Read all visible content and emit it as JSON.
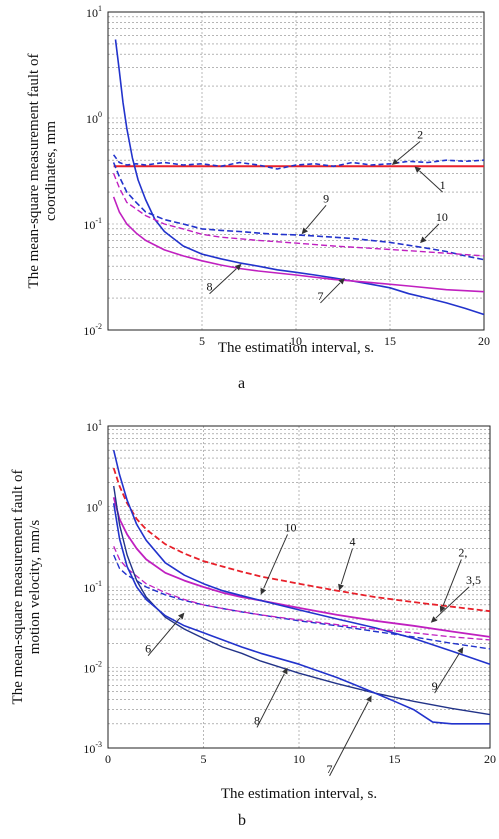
{
  "chart_data": [
    {
      "type": "line",
      "panel_label": "a",
      "xlabel": "The estimation interval, s.",
      "ylabel": "The mean-square measurement fault of coordinates, mm",
      "ylabel_lines": [
        "The mean-square measurement fault of",
        "coordinates, mm"
      ],
      "xlim": [
        0,
        20
      ],
      "ylim": [
        0.01,
        10
      ],
      "yscale": "log",
      "grid": true,
      "xticks": [
        "5",
        "10",
        "15",
        "20"
      ],
      "yticks": [
        {
          "base": "10",
          "exp": "1",
          "v": 10
        },
        {
          "base": "10",
          "exp": "0",
          "v": 1
        },
        {
          "base": "10",
          "exp": "-1",
          "v": 0.1
        },
        {
          "base": "10",
          "exp": "-2",
          "v": 0.01
        }
      ],
      "annotations": [
        {
          "text": "2",
          "x": 16.6,
          "y": 0.6,
          "tx": 15.1,
          "ty": 0.36
        },
        {
          "text": "1",
          "x": 17.8,
          "y": 0.2,
          "tx": 16.3,
          "ty": 0.35
        },
        {
          "text": "9",
          "x": 11.6,
          "y": 0.15,
          "tx": 10.3,
          "ty": 0.08
        },
        {
          "text": "10",
          "x": 17.6,
          "y": 0.1,
          "tx": 16.6,
          "ty": 0.066
        },
        {
          "text": "8",
          "x": 5.4,
          "y": 0.022,
          "tx": 7.1,
          "ty": 0.042
        },
        {
          "text": "7",
          "x": 11.3,
          "y": 0.018,
          "tx": 12.6,
          "ty": 0.031
        }
      ],
      "series": [
        {
          "color": "#e8202a",
          "dash": "",
          "width": 2,
          "x": [
            0.3,
            1,
            2,
            5,
            10,
            15,
            20
          ],
          "y": [
            0.35,
            0.35,
            0.35,
            0.35,
            0.35,
            0.35,
            0.35
          ]
        },
        {
          "color": "#2233cc",
          "dash": "5,3",
          "width": 1.6,
          "x": [
            0.3,
            0.6,
            1,
            1.5,
            2,
            3,
            4,
            5,
            6,
            7,
            8,
            9,
            10,
            11,
            12,
            13,
            14,
            15,
            16,
            17,
            18,
            19,
            20
          ],
          "y": [
            0.45,
            0.38,
            0.36,
            0.37,
            0.36,
            0.38,
            0.36,
            0.37,
            0.35,
            0.38,
            0.36,
            0.33,
            0.36,
            0.37,
            0.35,
            0.38,
            0.36,
            0.37,
            0.39,
            0.38,
            0.4,
            0.39,
            0.4
          ]
        },
        {
          "color": "#2233cc",
          "dash": "",
          "width": 1.6,
          "x": [
            0.4,
            0.6,
            0.8,
            1,
            1.3,
            1.6,
            2,
            2.5,
            3,
            4,
            5,
            6,
            7,
            8,
            9,
            10,
            11,
            12,
            13,
            14,
            15,
            16,
            17,
            18,
            19,
            20
          ],
          "y": [
            5.5,
            2.8,
            1.4,
            0.8,
            0.42,
            0.26,
            0.17,
            0.11,
            0.085,
            0.062,
            0.052,
            0.047,
            0.043,
            0.04,
            0.037,
            0.035,
            0.033,
            0.031,
            0.029,
            0.027,
            0.025,
            0.022,
            0.02,
            0.018,
            0.016,
            0.014
          ]
        },
        {
          "color": "#c020c0",
          "dash": "",
          "width": 1.6,
          "x": [
            0.3,
            0.6,
            1,
            1.5,
            2,
            3,
            4,
            5,
            6,
            7,
            8,
            10,
            12,
            14,
            16,
            18,
            20
          ],
          "y": [
            0.18,
            0.13,
            0.1,
            0.082,
            0.07,
            0.057,
            0.05,
            0.045,
            0.041,
            0.038,
            0.036,
            0.033,
            0.03,
            0.028,
            0.026,
            0.024,
            0.023
          ]
        },
        {
          "color": "#2233cc",
          "dash": "6,3",
          "width": 1.6,
          "x": [
            0.3,
            0.6,
            1,
            1.5,
            2,
            3,
            4,
            5,
            6,
            7,
            8,
            9,
            10,
            11,
            12,
            13,
            14,
            15,
            16,
            17,
            18,
            19,
            20
          ],
          "y": [
            0.38,
            0.28,
            0.2,
            0.16,
            0.13,
            0.11,
            0.1,
            0.09,
            0.087,
            0.085,
            0.082,
            0.08,
            0.079,
            0.077,
            0.075,
            0.073,
            0.07,
            0.067,
            0.063,
            0.059,
            0.055,
            0.05,
            0.046
          ]
        },
        {
          "color": "#c020c0",
          "dash": "6,3",
          "width": 1.4,
          "x": [
            0.3,
            0.6,
            1,
            2,
            3,
            4,
            5,
            6,
            8,
            10,
            12,
            14,
            16,
            18,
            20
          ],
          "y": [
            0.3,
            0.22,
            0.16,
            0.12,
            0.1,
            0.09,
            0.08,
            0.075,
            0.07,
            0.066,
            0.062,
            0.059,
            0.056,
            0.053,
            0.05
          ]
        }
      ]
    },
    {
      "type": "line",
      "panel_label": "b",
      "xlabel": "The estimation interval, s.",
      "ylabel": "The mean-square measurement fault of motion velocity, mm/s",
      "ylabel_lines": [
        "The mean-square measurement fault of",
        "motion velocity, mm/s"
      ],
      "xlim": [
        0,
        20
      ],
      "ylim": [
        0.001,
        10
      ],
      "yscale": "log",
      "grid": true,
      "xticks": [
        "0",
        "5",
        "10",
        "15",
        "20"
      ],
      "yticks": [
        {
          "base": "10",
          "exp": "1",
          "v": 10
        },
        {
          "base": "10",
          "exp": "0",
          "v": 1
        },
        {
          "base": "10",
          "exp": "-1",
          "v": 0.1
        },
        {
          "base": "10",
          "exp": "-2",
          "v": 0.01
        },
        {
          "base": "10",
          "exp": "-3",
          "v": 0.001
        }
      ],
      "annotations": [
        {
          "text": "10",
          "x": 9.4,
          "y": 0.45,
          "tx": 8.0,
          "ty": 0.08
        },
        {
          "text": "4",
          "x": 12.8,
          "y": 0.3,
          "tx": 12.1,
          "ty": 0.09
        },
        {
          "text": "2,",
          "x": 18.5,
          "y": 0.22,
          "tx": 17.4,
          "ty": 0.048
        },
        {
          "text": "3,5",
          "x": 18.9,
          "y": 0.1,
          "tx": 16.9,
          "ty": 0.036
        },
        {
          "text": "6",
          "x": 2.1,
          "y": 0.014,
          "tx": 4.0,
          "ty": 0.048
        },
        {
          "text": "9",
          "x": 17.1,
          "y": 0.0048,
          "tx": 18.6,
          "ty": 0.018
        },
        {
          "text": "8",
          "x": 7.8,
          "y": 0.0018,
          "tx": 9.4,
          "ty": 0.01
        },
        {
          "text": "7",
          "x": 11.6,
          "y": 0.00045,
          "tx": 13.8,
          "ty": 0.0045
        }
      ],
      "series": [
        {
          "color": "#e8202a",
          "dash": "6,3",
          "width": 1.8,
          "x": [
            0.3,
            0.6,
            1,
            1.5,
            2,
            3,
            4,
            5,
            6,
            7,
            8,
            10,
            12,
            14,
            16,
            18,
            20
          ],
          "y": [
            3.0,
            1.8,
            1.1,
            0.7,
            0.52,
            0.34,
            0.26,
            0.21,
            0.18,
            0.155,
            0.135,
            0.11,
            0.09,
            0.075,
            0.065,
            0.057,
            0.05
          ]
        },
        {
          "color": "#c020c0",
          "dash": "",
          "width": 1.8,
          "x": [
            0.3,
            0.6,
            1,
            1.5,
            2,
            3,
            4,
            5,
            6,
            7,
            8,
            10,
            12,
            14,
            16,
            18,
            20
          ],
          "y": [
            1.3,
            0.7,
            0.45,
            0.3,
            0.22,
            0.15,
            0.12,
            0.1,
            0.085,
            0.075,
            0.068,
            0.055,
            0.045,
            0.038,
            0.033,
            0.028,
            0.024
          ]
        },
        {
          "color": "#2233cc",
          "dash": "",
          "width": 1.6,
          "x": [
            0.3,
            0.6,
            1,
            1.5,
            2,
            3,
            4,
            5,
            6,
            7,
            8,
            10,
            12,
            14,
            16,
            18,
            20
          ],
          "y": [
            5.0,
            2.5,
            1.2,
            0.6,
            0.38,
            0.2,
            0.14,
            0.11,
            0.09,
            0.078,
            0.068,
            0.052,
            0.04,
            0.031,
            0.023,
            0.016,
            0.011
          ]
        },
        {
          "color": "#2233cc",
          "dash": "6,3",
          "width": 1.4,
          "x": [
            0.3,
            0.6,
            1,
            1.5,
            2,
            3,
            4,
            5,
            6,
            7,
            8,
            10,
            12,
            14,
            16,
            18,
            20
          ],
          "y": [
            0.25,
            0.17,
            0.14,
            0.12,
            0.1,
            0.08,
            0.068,
            0.06,
            0.054,
            0.049,
            0.045,
            0.038,
            0.033,
            0.028,
            0.024,
            0.02,
            0.017
          ]
        },
        {
          "color": "#c020c0",
          "dash": "6,3",
          "width": 1.3,
          "x": [
            0.3,
            0.6,
            1,
            2,
            3,
            4,
            5,
            6,
            8,
            10,
            12,
            14,
            16,
            18,
            20
          ],
          "y": [
            0.32,
            0.22,
            0.17,
            0.11,
            0.085,
            0.07,
            0.06,
            0.054,
            0.045,
            0.039,
            0.034,
            0.03,
            0.027,
            0.024,
            0.022
          ]
        },
        {
          "color": "#223388",
          "dash": "",
          "width": 1.4,
          "x": [
            0.3,
            0.6,
            1,
            1.5,
            2,
            3,
            4,
            5,
            6,
            7,
            8,
            10,
            12,
            14,
            16,
            18,
            20
          ],
          "y": [
            1.8,
            0.6,
            0.25,
            0.12,
            0.075,
            0.042,
            0.03,
            0.023,
            0.018,
            0.015,
            0.012,
            0.0085,
            0.0063,
            0.0048,
            0.0038,
            0.0031,
            0.0026
          ]
        },
        {
          "color": "#2233cc",
          "dash": "",
          "width": 1.6,
          "x": [
            0.3,
            0.6,
            1,
            1.5,
            2,
            3,
            4,
            5,
            6,
            7,
            8,
            10,
            12,
            13,
            14,
            15,
            16,
            17,
            18,
            19,
            20
          ],
          "y": [
            1.1,
            0.4,
            0.18,
            0.1,
            0.07,
            0.044,
            0.033,
            0.027,
            0.022,
            0.018,
            0.015,
            0.011,
            0.0075,
            0.006,
            0.0048,
            0.0038,
            0.003,
            0.0021,
            0.002,
            0.002,
            0.002
          ]
        }
      ]
    }
  ]
}
